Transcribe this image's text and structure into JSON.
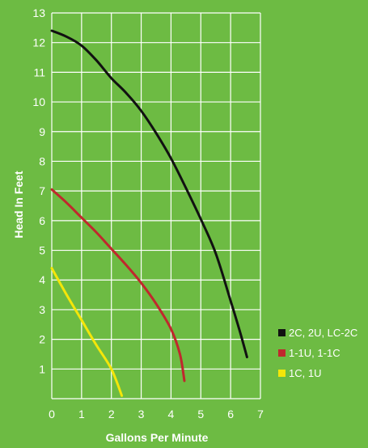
{
  "chart_data": {
    "type": "line",
    "title": "",
    "xlabel": "Gallons Per Minute",
    "ylabel": "Head In Feet",
    "xlim": [
      0,
      7
    ],
    "ylim": [
      0,
      13
    ],
    "x_ticks": [
      0,
      1,
      2,
      3,
      4,
      5,
      6,
      7
    ],
    "y_ticks": [
      1,
      2,
      3,
      4,
      5,
      6,
      7,
      8,
      9,
      10,
      11,
      12,
      13
    ],
    "grid": true,
    "legend_position": "right",
    "colors": {
      "background": "#6dbb43",
      "grid": "#ffffff",
      "text": "#ffffff"
    },
    "series": [
      {
        "name": "2C, 2U, LC-2C",
        "color": "#111111",
        "points": [
          [
            0,
            12.4
          ],
          [
            0.5,
            12.2
          ],
          [
            1,
            11.9
          ],
          [
            1.5,
            11.4
          ],
          [
            2,
            10.8
          ],
          [
            2.5,
            10.3
          ],
          [
            3,
            9.7
          ],
          [
            3.5,
            8.95
          ],
          [
            4,
            8.1
          ],
          [
            4.5,
            7.1
          ],
          [
            5,
            6.05
          ],
          [
            5.5,
            4.9
          ],
          [
            6,
            3.3
          ],
          [
            6.3,
            2.3
          ],
          [
            6.55,
            1.4
          ]
        ]
      },
      {
        "name": "1-1U, 1-1C",
        "color": "#c0282d",
        "points": [
          [
            0,
            7.05
          ],
          [
            0.5,
            6.6
          ],
          [
            1,
            6.1
          ],
          [
            1.5,
            5.6
          ],
          [
            2,
            5.05
          ],
          [
            2.5,
            4.5
          ],
          [
            3,
            3.9
          ],
          [
            3.5,
            3.2
          ],
          [
            4,
            2.35
          ],
          [
            4.3,
            1.5
          ],
          [
            4.45,
            0.6
          ]
        ]
      },
      {
        "name": "1C, 1U",
        "color": "#f4e609",
        "points": [
          [
            0,
            4.4
          ],
          [
            0.5,
            3.5
          ],
          [
            1,
            2.65
          ],
          [
            1.5,
            1.8
          ],
          [
            2,
            1.0
          ],
          [
            2.35,
            0.1
          ]
        ]
      }
    ]
  }
}
